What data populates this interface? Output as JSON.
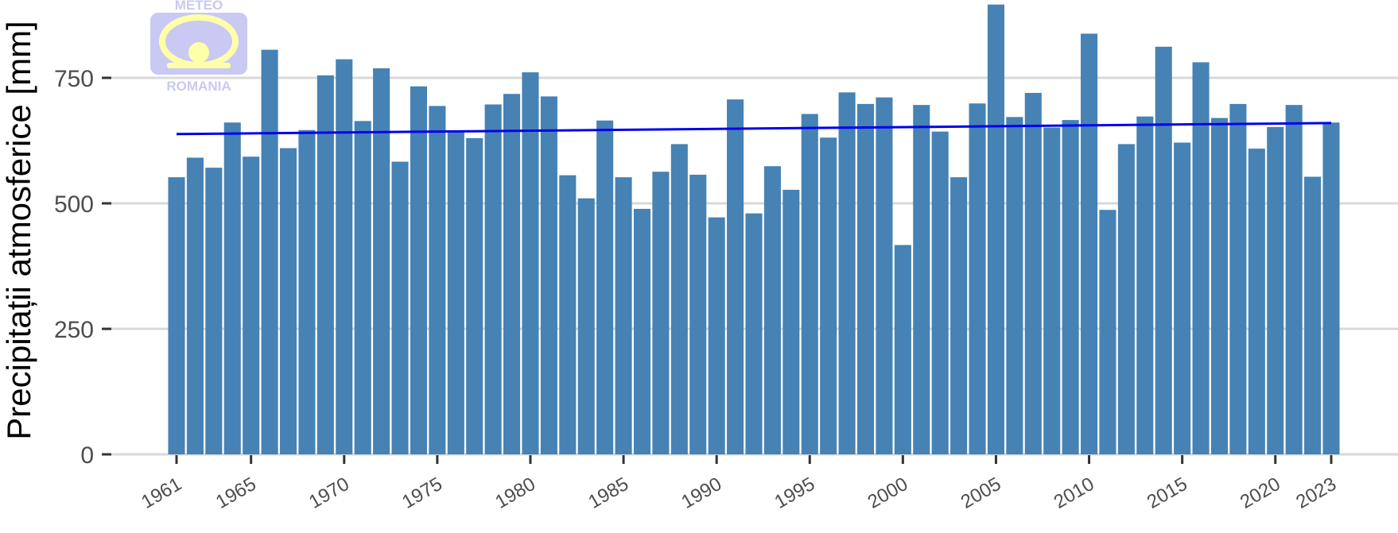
{
  "logo": {
    "top_text": "METEO",
    "bottom_text": "ROMANIA"
  },
  "colors": {
    "bar": "#4682b4",
    "trend": "#0000ee",
    "grid": "#d9d9d9",
    "logo": "#c9c9f3",
    "logo_accent": "#ffffaa"
  },
  "chart_data": {
    "type": "bar",
    "ylabel": "Precipitații atmosferice [mm]",
    "xlabel": "",
    "ylim": [
      0,
      900
    ],
    "yticks": [
      0,
      250,
      500,
      750
    ],
    "xticks": [
      1961,
      1965,
      1970,
      1975,
      1980,
      1985,
      1990,
      1995,
      2000,
      2005,
      2010,
      2015,
      2020,
      2023
    ],
    "grid": "horizontal",
    "categories": [
      1961,
      1962,
      1963,
      1964,
      1965,
      1966,
      1967,
      1968,
      1969,
      1970,
      1971,
      1972,
      1973,
      1974,
      1975,
      1976,
      1977,
      1978,
      1979,
      1980,
      1981,
      1982,
      1983,
      1984,
      1985,
      1986,
      1987,
      1988,
      1989,
      1990,
      1991,
      1992,
      1993,
      1994,
      1995,
      1996,
      1997,
      1998,
      1999,
      2000,
      2001,
      2002,
      2003,
      2004,
      2005,
      2006,
      2007,
      2008,
      2009,
      2010,
      2011,
      2012,
      2013,
      2014,
      2015,
      2016,
      2017,
      2018,
      2019,
      2020,
      2021,
      2022,
      2023
    ],
    "values": [
      552,
      591,
      571,
      661,
      593,
      806,
      610,
      646,
      755,
      787,
      664,
      769,
      583,
      733,
      694,
      642,
      630,
      697,
      718,
      761,
      713,
      556,
      510,
      665,
      552,
      489,
      563,
      618,
      557,
      472,
      707,
      480,
      574,
      527,
      678,
      631,
      721,
      698,
      711,
      417,
      696,
      643,
      552,
      699,
      896,
      672,
      720,
      651,
      666,
      838,
      487,
      618,
      673,
      812,
      621,
      781,
      670,
      698,
      609,
      652,
      696,
      553,
      661
    ],
    "trend": {
      "start": 638,
      "end": 660,
      "label": ""
    }
  }
}
